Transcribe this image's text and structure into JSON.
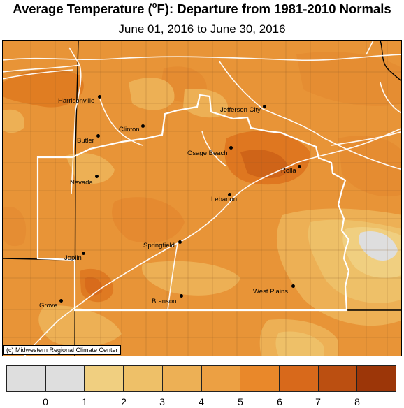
{
  "title": {
    "main": "Average Temperature (",
    "degree": "o",
    "unit_rest": "F): Departure from 1981-2010 Normals"
  },
  "subtitle": "June 01, 2016 to June 30, 2016",
  "credit": "(c) Midwestern Regional Climate Center",
  "cities": [
    {
      "name": "Harrisonville"
    },
    {
      "name": "Jefferson City"
    },
    {
      "name": "Clinton"
    },
    {
      "name": "Butler"
    },
    {
      "name": "Osage Beach"
    },
    {
      "name": "Rolla"
    },
    {
      "name": "Nevada"
    },
    {
      "name": "Lebanon"
    },
    {
      "name": "Springfield"
    },
    {
      "name": "Joplin"
    },
    {
      "name": "West Plains"
    },
    {
      "name": "Branson"
    },
    {
      "name": "Grove"
    }
  ],
  "legend": {
    "colors": [
      "#dedede",
      "#dedede",
      "#f0cf80",
      "#eec068",
      "#edb055",
      "#eca043",
      "#e9882a",
      "#d8691b",
      "#bb4f11",
      "#9c3608"
    ],
    "ticks": [
      "0",
      "1",
      "2",
      "3",
      "4",
      "5",
      "6",
      "7",
      "8"
    ]
  },
  "colors": {
    "base_anomaly": "#e89437",
    "warm_anomaly": "#d8691b",
    "cool_anomaly": "#eec068",
    "near_normal": "#dedede"
  }
}
